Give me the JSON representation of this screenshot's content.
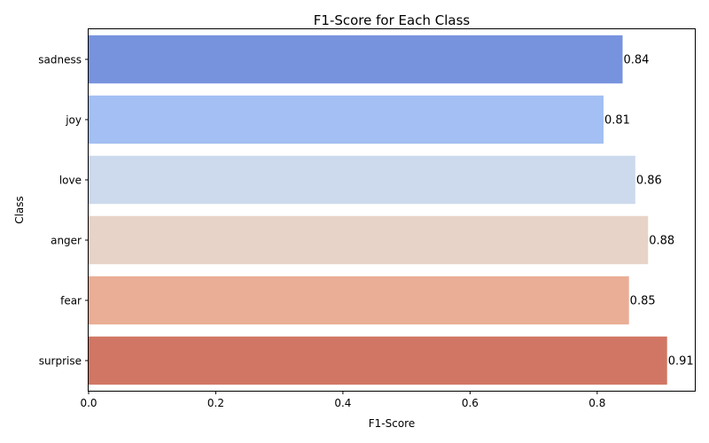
{
  "chart_data": {
    "type": "bar",
    "orientation": "horizontal",
    "title": "F1-Score for Each Class",
    "xlabel": "F1-Score",
    "ylabel": "Class",
    "categories": [
      "sadness",
      "joy",
      "love",
      "anger",
      "fear",
      "surprise"
    ],
    "values": [
      0.84,
      0.81,
      0.86,
      0.88,
      0.85,
      0.91
    ],
    "data_labels": [
      "0.84",
      "0.81",
      "0.86",
      "0.88",
      "0.85",
      "0.91"
    ],
    "colors": [
      "#7893de",
      "#a3bff3",
      "#cdd9ec",
      "#e8d3c8",
      "#eaad95",
      "#d17664"
    ],
    "xlim": [
      0,
      0.955
    ],
    "xticks": [
      0.0,
      0.2,
      0.4,
      0.6,
      0.8
    ],
    "xtick_labels": [
      "0.0",
      "0.2",
      "0.4",
      "0.6",
      "0.8"
    ],
    "grid": false,
    "legend": "none"
  }
}
